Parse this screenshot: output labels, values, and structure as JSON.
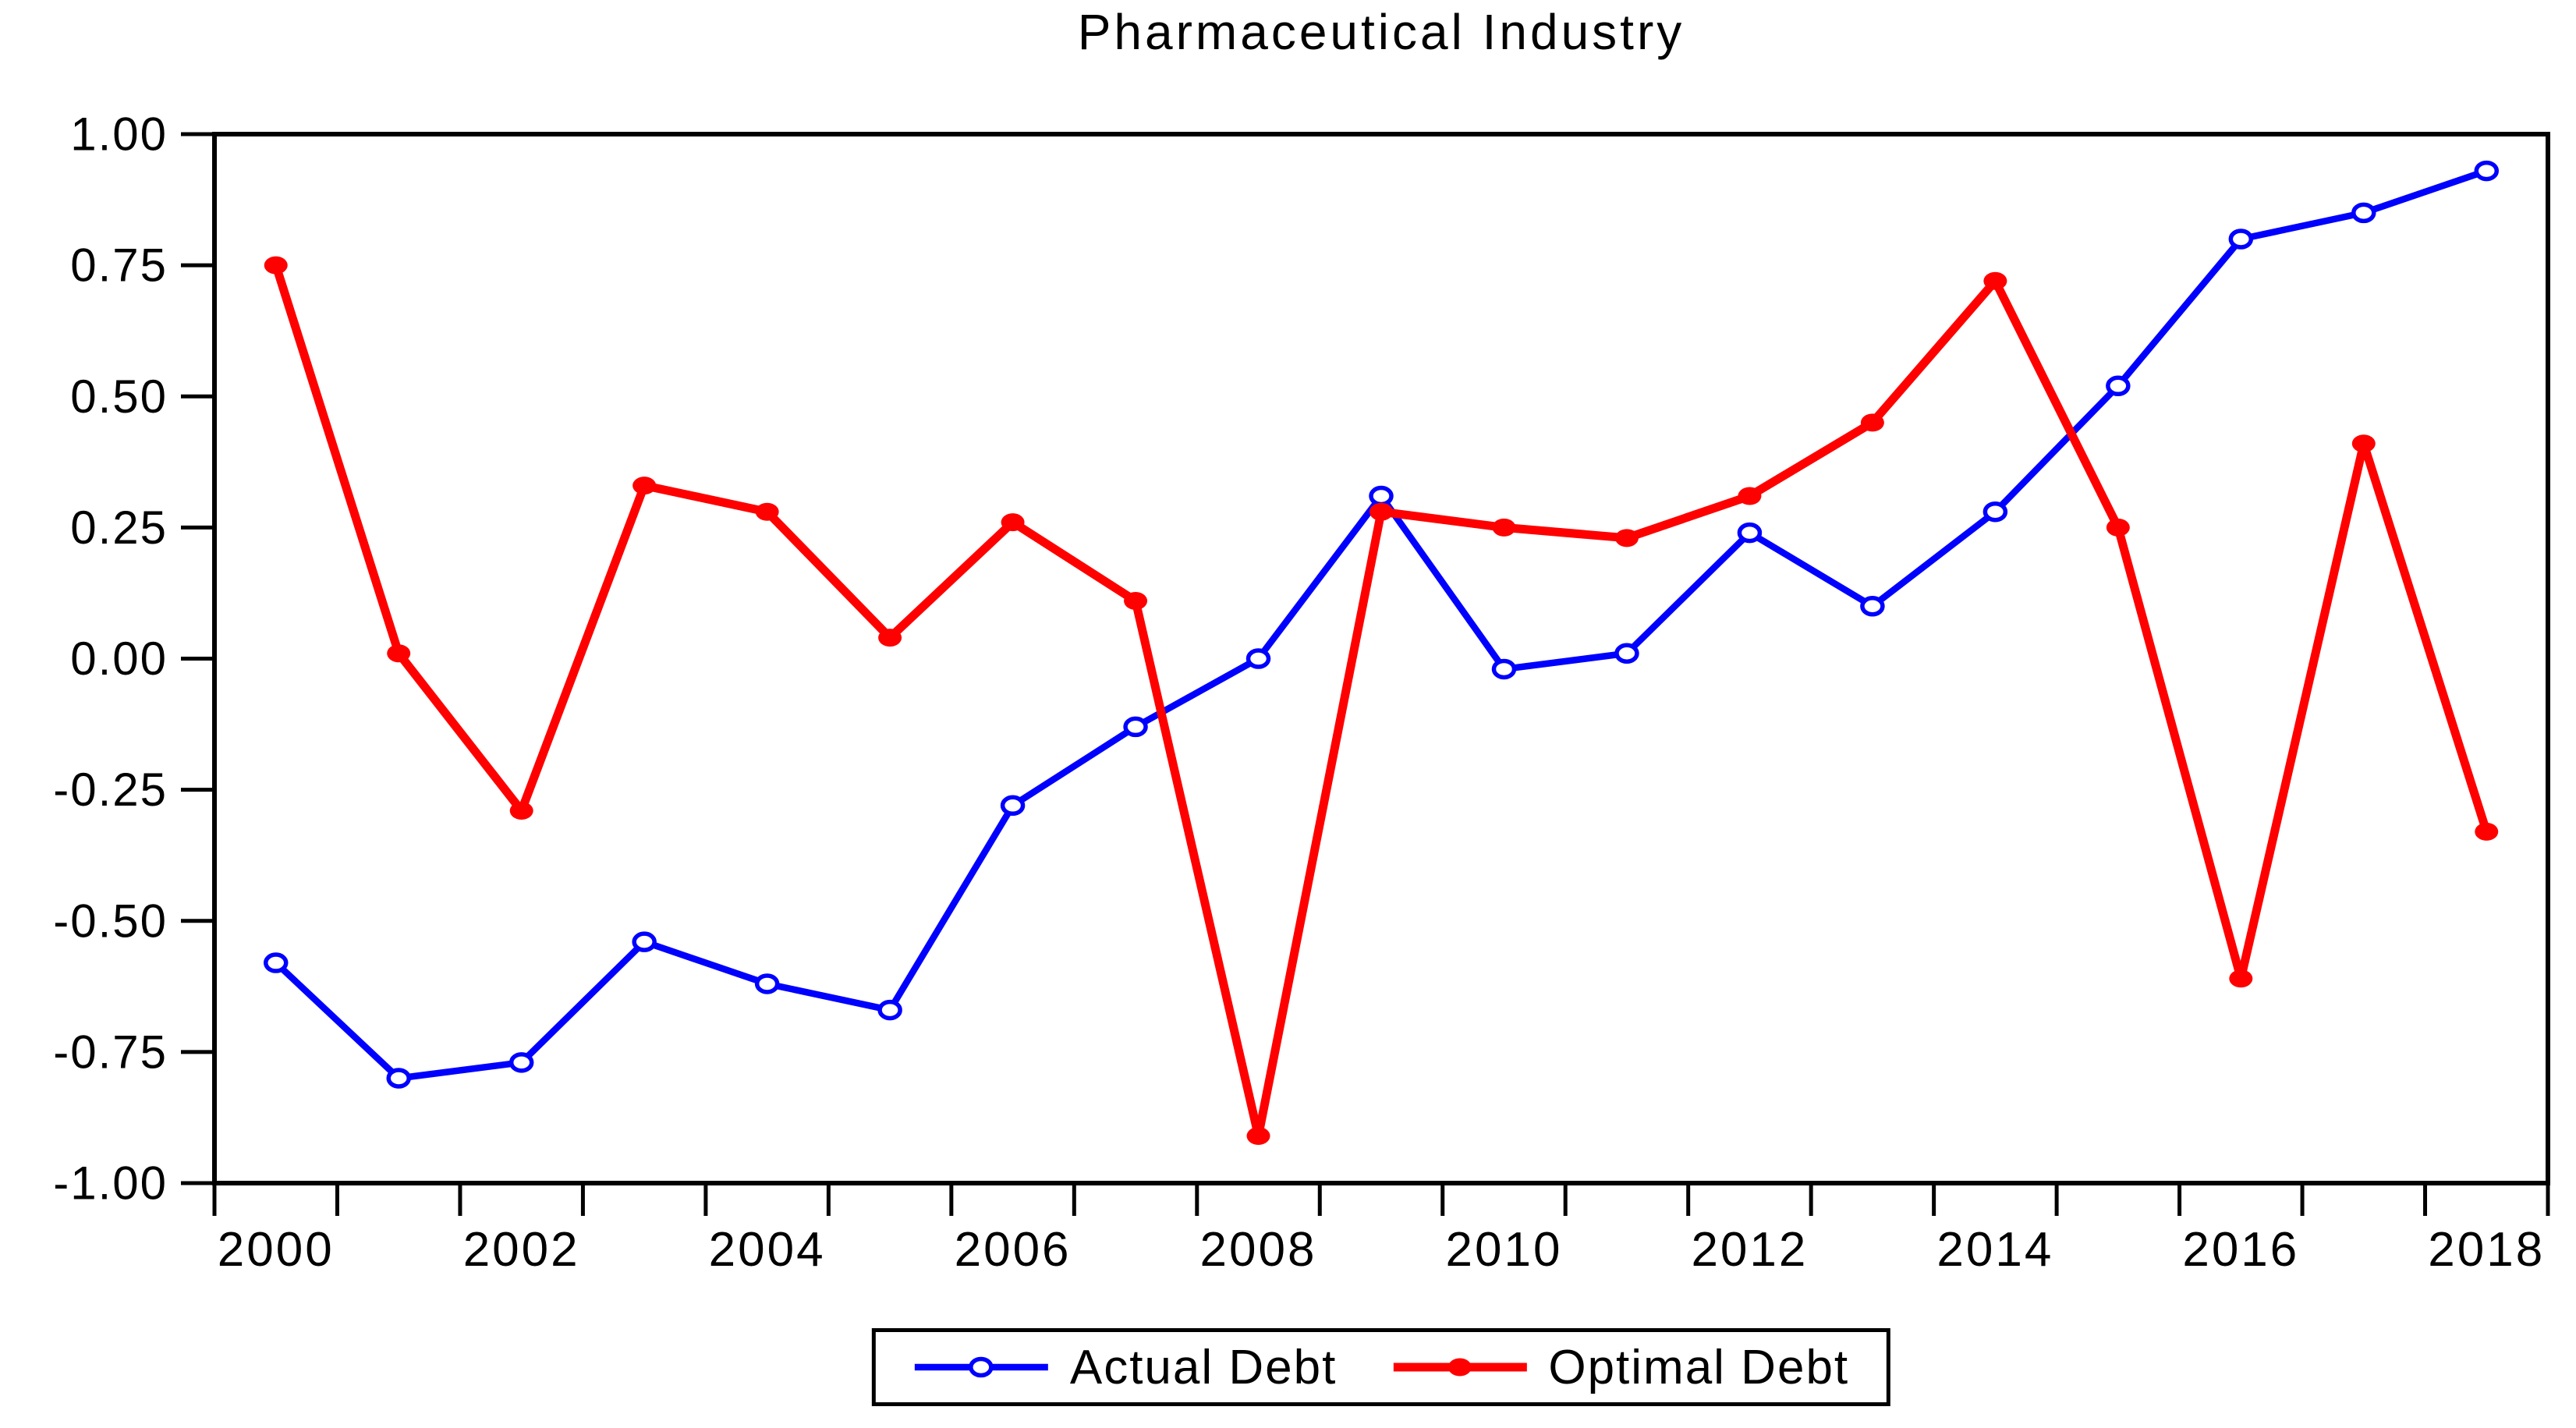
{
  "page": {
    "background": "#ffffff"
  },
  "chart": {
    "title": "Pharmaceutical Industry",
    "axis_color": "#000000",
    "legend_border_color": "#000000"
  },
  "chart_data": {
    "type": "line",
    "title": "Pharmaceutical Industry",
    "x": [
      2000,
      2001,
      2002,
      2003,
      2004,
      2005,
      2006,
      2007,
      2008,
      2009,
      2010,
      2011,
      2012,
      2013,
      2014,
      2015,
      2016,
      2017,
      2018
    ],
    "series": [
      {
        "name": "Actual Debt",
        "color": "#0000ff",
        "marker": "open-circle",
        "values": [
          -0.58,
          -0.8,
          -0.77,
          -0.54,
          -0.62,
          -0.67,
          -0.28,
          -0.13,
          0.0,
          0.31,
          -0.02,
          0.01,
          0.24,
          0.1,
          0.28,
          0.52,
          0.8,
          0.85,
          0.93
        ]
      },
      {
        "name": "Optimal Debt",
        "color": "#ff0000",
        "marker": "filled-circle",
        "values": [
          0.75,
          0.01,
          -0.29,
          0.33,
          0.28,
          0.04,
          0.26,
          0.11,
          -0.91,
          0.28,
          0.25,
          0.23,
          0.31,
          0.45,
          0.72,
          0.25,
          -0.61,
          0.41,
          -0.33
        ]
      }
    ],
    "ylim": [
      -1.0,
      1.0
    ],
    "yticks": [
      {
        "value": 1.0,
        "label": "1.00"
      },
      {
        "value": 0.75,
        "label": "0.75"
      },
      {
        "value": 0.5,
        "label": "0.50"
      },
      {
        "value": 0.25,
        "label": "0.25"
      },
      {
        "value": 0.0,
        "label": "0.00"
      },
      {
        "value": -0.25,
        "label": "-0.25"
      },
      {
        "value": -0.5,
        "label": "-0.50"
      },
      {
        "value": -0.75,
        "label": "-0.75"
      },
      {
        "value": -1.0,
        "label": "-1.00"
      }
    ],
    "xtick_labels": [
      "2000",
      "2002",
      "2004",
      "2006",
      "2008",
      "2010",
      "2012",
      "2014",
      "2016",
      "2018"
    ],
    "grid": false,
    "legend_position": "bottom-center"
  }
}
